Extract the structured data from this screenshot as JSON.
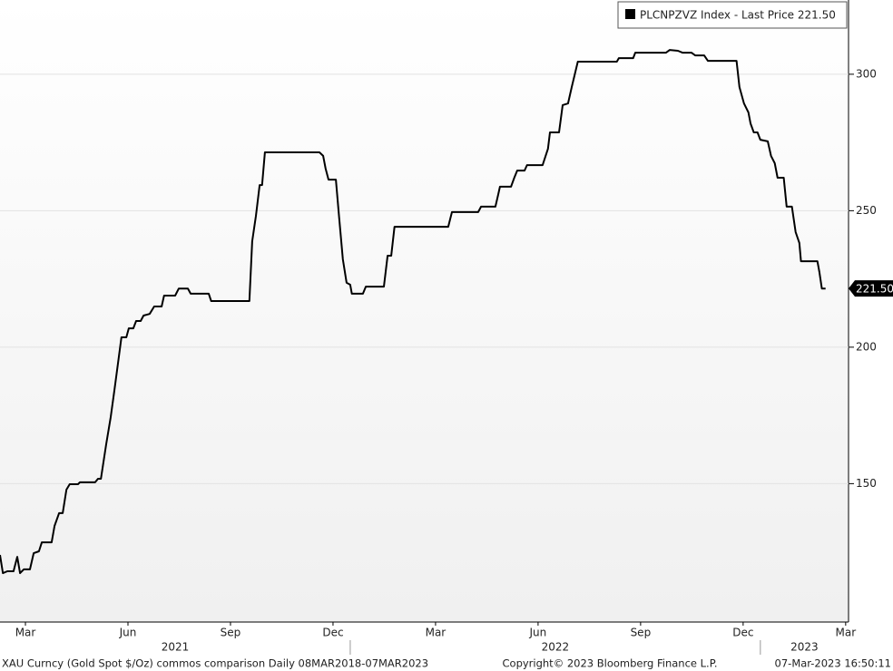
{
  "chart_data": {
    "type": "line",
    "series": [
      {
        "name": "PLCNPZVZ Index - Last Price 221.50",
        "color": "#000000",
        "x": [
          2021.146,
          2021.153,
          2021.164,
          2021.179,
          2021.188,
          2021.195,
          2021.204,
          2021.219,
          2021.228,
          2021.241,
          2021.248,
          2021.272,
          2021.279,
          2021.29,
          2021.299,
          2021.308,
          2021.316,
          2021.336,
          2021.341,
          2021.378,
          2021.385,
          2021.392,
          2021.405,
          2021.416,
          2021.425,
          2021.434,
          2021.442,
          2021.454,
          2021.46,
          2021.471,
          2021.478,
          2021.489,
          2021.496,
          2021.511,
          2021.522,
          2021.54,
          2021.546,
          2021.573,
          2021.582,
          2021.604,
          2021.611,
          2021.655,
          2021.661,
          2021.754,
          2021.761,
          2021.77,
          2021.779,
          2021.785,
          2021.792,
          2021.925,
          2021.934,
          2021.94,
          2021.947,
          2021.965,
          2021.973,
          2021.982,
          2021.991,
          2022.0,
          2022.004,
          2022.031,
          2022.038,
          2022.082,
          2022.091,
          2022.1,
          2022.108,
          2022.239,
          2022.248,
          2022.312,
          2022.319,
          2022.354,
          2022.361,
          2022.365,
          2022.392,
          2022.4,
          2022.407,
          2022.425,
          2022.431,
          2022.469,
          2022.482,
          2022.487,
          2022.509,
          2022.518,
          2022.531,
          2022.54,
          2022.555,
          2022.65,
          2022.655,
          2022.69,
          2022.695,
          2022.77,
          2022.779,
          2022.799,
          2022.81,
          2022.832,
          2022.841,
          2022.863,
          2022.872,
          2022.942,
          2022.949,
          2022.96,
          2022.971,
          2022.976,
          2022.984,
          2022.993,
          2023.0,
          2023.018,
          2023.026,
          2023.035,
          2023.042,
          2023.057,
          2023.064,
          2023.077,
          2023.086,
          2023.095,
          2023.099,
          2023.139,
          2023.144,
          2023.15,
          2023.159
        ],
        "values": [
          123.9,
          117.2,
          117.9,
          117.9,
          123.2,
          117.2,
          118.6,
          118.6,
          124.5,
          125.2,
          128.5,
          128.5,
          134.5,
          139.2,
          139.2,
          147.8,
          149.8,
          149.8,
          150.5,
          150.5,
          151.8,
          151.8,
          164.4,
          174.4,
          184.3,
          194.3,
          203.6,
          203.6,
          206.9,
          206.9,
          209.6,
          209.6,
          211.6,
          212.2,
          214.9,
          214.9,
          218.9,
          218.9,
          221.5,
          221.5,
          219.6,
          219.6,
          216.9,
          216.9,
          238.8,
          248.1,
          259.4,
          259.4,
          271.4,
          271.4,
          270.1,
          265.4,
          261.4,
          261.4,
          247.5,
          232.2,
          223.6,
          222.9,
          219.6,
          219.6,
          222.2,
          222.2,
          233.5,
          233.5,
          244.1,
          244.1,
          249.5,
          249.5,
          251.5,
          251.5,
          256.1,
          258.8,
          258.8,
          262.1,
          264.7,
          264.7,
          266.7,
          266.7,
          272.7,
          278.7,
          278.7,
          288.7,
          289.3,
          295.3,
          304.6,
          304.6,
          305.9,
          305.9,
          307.9,
          307.9,
          308.9,
          308.6,
          307.9,
          307.9,
          306.9,
          306.9,
          304.9,
          304.9,
          295.3,
          289.3,
          286.0,
          282.0,
          278.7,
          278.7,
          276.0,
          275.4,
          270.1,
          267.4,
          262.1,
          262.1,
          251.5,
          251.5,
          242.2,
          238.2,
          231.5,
          231.5,
          227.5,
          221.5,
          221.5
        ]
      }
    ],
    "last_label": "221.50",
    "xlim": [
      2021.146,
      2023.215
    ],
    "xticks": [
      {
        "value": 2021.208,
        "label": "Mar"
      },
      {
        "value": 2021.458,
        "label": "Jun"
      },
      {
        "value": 2021.708,
        "label": "Sep"
      },
      {
        "value": 2021.958,
        "label": "Dec"
      },
      {
        "value": 2022.208,
        "label": "Mar"
      },
      {
        "value": 2022.458,
        "label": "Jun"
      },
      {
        "value": 2022.708,
        "label": "Sep"
      },
      {
        "value": 2022.958,
        "label": "Dec"
      },
      {
        "value": 2023.208,
        "label": "Mar"
      }
    ],
    "year_ticks": [
      2022,
      2023
    ],
    "year_labels": [
      "2021",
      "2022",
      "2023"
    ],
    "ylim": [
      99.3,
      327.2
    ],
    "yticks": [
      150,
      200,
      250,
      300
    ],
    "grid": true,
    "footer": {
      "left": "XAU Curncy (Gold Spot  $/Oz) commos comparison  Daily 08MAR2018-07MAR2023",
      "center": "Copyright© 2023 Bloomberg Finance L.P.",
      "right": "07-Mar-2023 16:50:11"
    }
  }
}
